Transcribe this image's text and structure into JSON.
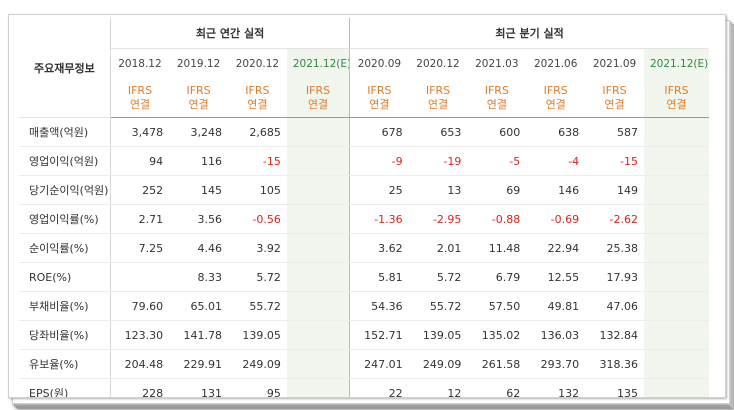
{
  "header": {
    "label_col": "주요재무정보",
    "annual_title": "최근 연간 실적",
    "quarter_title": "최근 분기 실적",
    "periods": [
      "2018.12",
      "2019.12",
      "2020.12",
      "2021.12(E)",
      "2020.09",
      "2020.12",
      "2021.03",
      "2021.06",
      "2021.09",
      "2021.12(E)"
    ],
    "standard_line1": "IFRS",
    "standard_line2": "연결"
  },
  "rows": [
    {
      "label": "매출액(억원)",
      "values": [
        "3,478",
        "3,248",
        "2,685",
        "",
        "678",
        "653",
        "600",
        "638",
        "587",
        ""
      ]
    },
    {
      "label": "영업이익(억원)",
      "values": [
        "94",
        "116",
        "-15",
        "",
        "-9",
        "-19",
        "-5",
        "-4",
        "-15",
        ""
      ]
    },
    {
      "label": "당기순이익(억원)",
      "values": [
        "252",
        "145",
        "105",
        "",
        "25",
        "13",
        "69",
        "146",
        "149",
        ""
      ]
    },
    {
      "label": "영업이익률(%)",
      "values": [
        "2.71",
        "3.56",
        "-0.56",
        "",
        "-1.36",
        "-2.95",
        "-0.88",
        "-0.69",
        "-2.62",
        ""
      ]
    },
    {
      "label": "순이익률(%)",
      "values": [
        "7.25",
        "4.46",
        "3.92",
        "",
        "3.62",
        "2.01",
        "11.48",
        "22.94",
        "25.38",
        ""
      ]
    },
    {
      "label": "ROE(%)",
      "values": [
        "",
        "8.33",
        "5.72",
        "",
        "5.81",
        "5.72",
        "6.79",
        "12.55",
        "17.93",
        ""
      ]
    },
    {
      "label": "부채비율(%)",
      "values": [
        "79.60",
        "65.01",
        "55.72",
        "",
        "54.36",
        "55.72",
        "57.50",
        "49.81",
        "47.06",
        ""
      ]
    },
    {
      "label": "당좌비율(%)",
      "values": [
        "123.30",
        "141.78",
        "139.05",
        "",
        "152.71",
        "139.05",
        "135.02",
        "136.03",
        "132.84",
        ""
      ]
    },
    {
      "label": "유보율(%)",
      "values": [
        "204.48",
        "229.91",
        "249.09",
        "",
        "247.01",
        "249.09",
        "261.58",
        "293.70",
        "318.36",
        ""
      ]
    },
    {
      "label": "EPS(원)",
      "values": [
        "228",
        "131",
        "95",
        "",
        "22",
        "12",
        "62",
        "132",
        "135",
        ""
      ]
    }
  ],
  "colors": {
    "negative": "#e3201b",
    "ifrs": "#e07b2c",
    "estimate_bg": "#f0f6ee"
  }
}
